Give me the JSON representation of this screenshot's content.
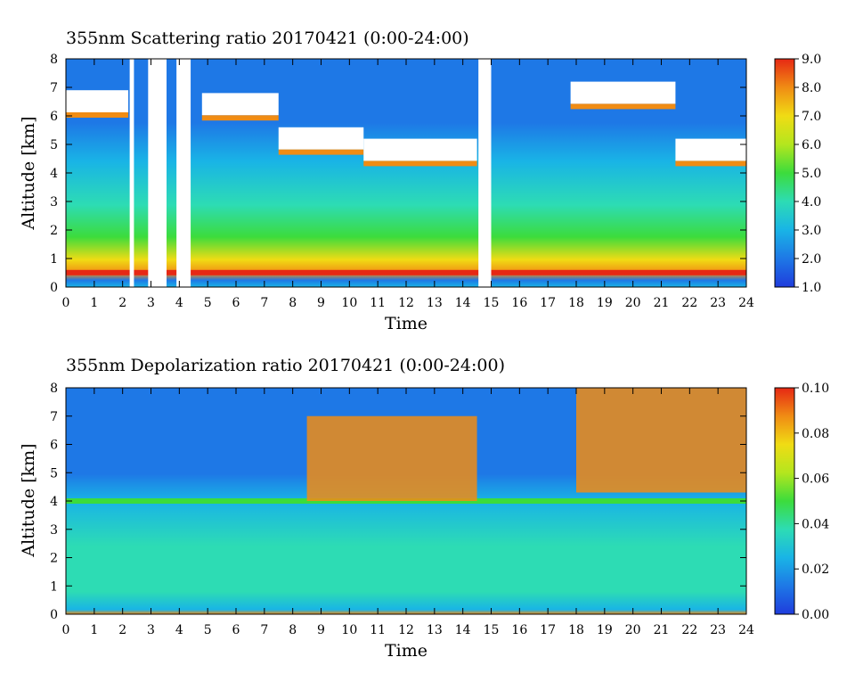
{
  "chart_data": [
    {
      "type": "heatmap",
      "title": "355nm Scattering ratio  20170421 (0:00-24:00)",
      "xlabel": "Time",
      "ylabel": "Altitude [km]",
      "xlim": [
        0,
        24
      ],
      "ylim": [
        0,
        8
      ],
      "x_ticks": [
        "0",
        "1",
        "2",
        "3",
        "4",
        "5",
        "6",
        "7",
        "8",
        "9",
        "10",
        "11",
        "12",
        "13",
        "14",
        "15",
        "16",
        "17",
        "18",
        "19",
        "20",
        "21",
        "22",
        "23",
        "24"
      ],
      "y_ticks": [
        "0",
        "1",
        "2",
        "3",
        "4",
        "5",
        "6",
        "7",
        "8"
      ],
      "colorbar": {
        "range": [
          1.0,
          9.0
        ],
        "ticks": [
          "1.0",
          "2.0",
          "3.0",
          "4.0",
          "5.0",
          "6.0",
          "7.0",
          "8.0",
          "9.0"
        ],
        "colors": [
          "#1f3cdc",
          "#1e78e6",
          "#19b4e6",
          "#2ddcb4",
          "#3cdc3c",
          "#b4e61e",
          "#f0dc14",
          "#f08c14",
          "#e62814"
        ]
      },
      "features": {
        "near_surface_layer_top_km": 0.6,
        "cloud_base_km_segments": [
          {
            "x": [
              0.0,
              2.2
            ],
            "z": 6.0
          },
          {
            "x": [
              4.8,
              7.5
            ],
            "z": 5.9
          },
          {
            "x": [
              7.5,
              10.5
            ],
            "z": 4.7
          },
          {
            "x": [
              10.5,
              14.5
            ],
            "z": 4.3
          },
          {
            "x": [
              17.8,
              21.5
            ],
            "z": 6.3
          },
          {
            "x": [
              21.5,
              24.0
            ],
            "z": 4.3
          }
        ],
        "no_data_gaps_hours": [
          [
            2.25,
            2.4
          ],
          [
            2.9,
            3.55
          ],
          [
            3.9,
            4.4
          ],
          [
            14.55,
            15.0
          ]
        ]
      }
    },
    {
      "type": "heatmap",
      "title": "355nm Depolarization ratio  20170421 (0:00-24:00)",
      "xlabel": "Time",
      "ylabel": "Altitude [km]",
      "xlim": [
        0,
        24
      ],
      "ylim": [
        0,
        8
      ],
      "x_ticks": [
        "0",
        "1",
        "2",
        "3",
        "4",
        "5",
        "6",
        "7",
        "8",
        "9",
        "10",
        "11",
        "12",
        "13",
        "14",
        "15",
        "16",
        "17",
        "18",
        "19",
        "20",
        "21",
        "22",
        "23",
        "24"
      ],
      "y_ticks": [
        "0",
        "1",
        "2",
        "3",
        "4",
        "5",
        "6",
        "7",
        "8"
      ],
      "colorbar": {
        "range": [
          0.0,
          0.1
        ],
        "ticks": [
          "0.00",
          "0.02",
          "0.04",
          "0.06",
          "0.08",
          "0.10"
        ],
        "colors": [
          "#1f3cdc",
          "#1e78e6",
          "#19b4e6",
          "#2ddcb4",
          "#3cdc3c",
          "#b4e61e",
          "#f0dc14",
          "#f08c14",
          "#e62814"
        ]
      },
      "features": {
        "aerosol_layer_top_km": 4.0,
        "high_depol_regions": [
          {
            "x": [
              8.5,
              14.5
            ],
            "z": [
              4.0,
              7.0
            ]
          },
          {
            "x": [
              18.0,
              24.0
            ],
            "z": [
              4.3,
              8.0
            ]
          }
        ]
      }
    }
  ]
}
